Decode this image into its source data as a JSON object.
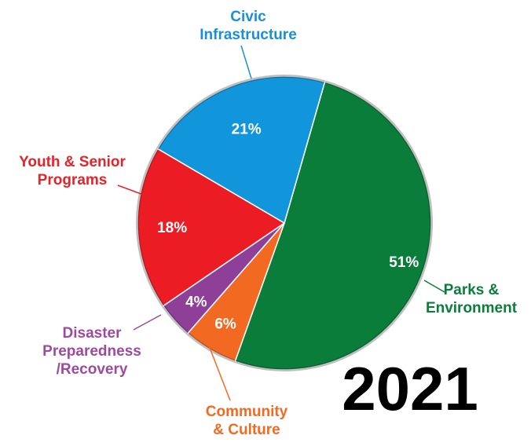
{
  "chart_data": {
    "type": "pie",
    "title": "2021",
    "slices": [
      {
        "name": "Parks & Environment",
        "label_lines": [
          "Parks &",
          "Environment"
        ],
        "value": 51,
        "value_label": "51%",
        "color": "#0a7d3b",
        "label_color": "#0a7d3b"
      },
      {
        "name": "Community & Culture",
        "label_lines": [
          "Community",
          "& Culture"
        ],
        "value": 6,
        "value_label": "6%",
        "color": "#f26a22",
        "label_color": "#f26a22"
      },
      {
        "name": "Disaster Preparedness /Recovery",
        "label_lines": [
          "Disaster",
          "Preparedness",
          "/Recovery"
        ],
        "value": 4,
        "value_label": "4%",
        "color": "#8e3f98",
        "label_color": "#9b4a9e"
      },
      {
        "name": "Youth & Senior Programs",
        "label_lines": [
          "Youth & Senior",
          "Programs"
        ],
        "value": 18,
        "value_label": "18%",
        "color": "#ec1c24",
        "label_color": "#e3242b"
      },
      {
        "name": "Civic Infrastructure",
        "label_lines": [
          "Civic",
          "Infrastructure"
        ],
        "value": 21,
        "value_label": "21%",
        "color": "#1196dc",
        "label_color": "#1a8fd8"
      }
    ]
  }
}
